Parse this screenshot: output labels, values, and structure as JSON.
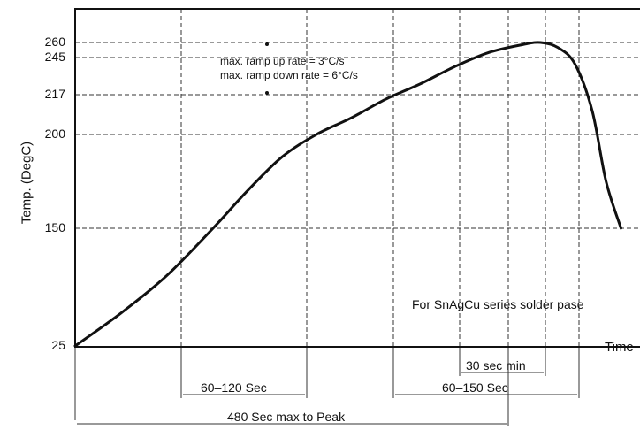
{
  "chart_data": {
    "type": "line",
    "title": "",
    "ylabel": "Temp. (DegC)",
    "xlabel": "Time",
    "ylim": [
      25,
      285
    ],
    "y_ticks": [
      {
        "value": 25,
        "label": "25"
      },
      {
        "value": 150,
        "label": "150"
      },
      {
        "value": 200,
        "label": "200"
      },
      {
        "value": 217,
        "label": "217"
      },
      {
        "value": 245,
        "label": "245"
      },
      {
        "value": 260,
        "label": "260"
      }
    ],
    "series": [
      {
        "points": [
          [
            0,
            25
          ],
          [
            40,
            60
          ],
          [
            80,
            100
          ],
          [
            120,
            150
          ],
          [
            150,
            170
          ],
          [
            180,
            188
          ],
          [
            210,
            200
          ],
          [
            240,
            207
          ],
          [
            270,
            215
          ],
          [
            300,
            225
          ],
          [
            330,
            238
          ],
          [
            360,
            250
          ],
          [
            390,
            258
          ],
          [
            405,
            260
          ],
          [
            420,
            255
          ],
          [
            435,
            240
          ],
          [
            450,
            210
          ],
          [
            462,
            175
          ],
          [
            475,
            150
          ]
        ]
      }
    ],
    "annotations": {
      "ramp_up": "max. ramp up rate = 3°C/s",
      "ramp_down": "max. ramp down rate = 6°C/s",
      "note": "For SnAgCu series solder pase",
      "preheat_window": "60–120 Sec",
      "tal_window": "60–150 Sec",
      "peak_window": "30 sec min",
      "total_to_peak": "480 Sec max to Peak"
    }
  }
}
